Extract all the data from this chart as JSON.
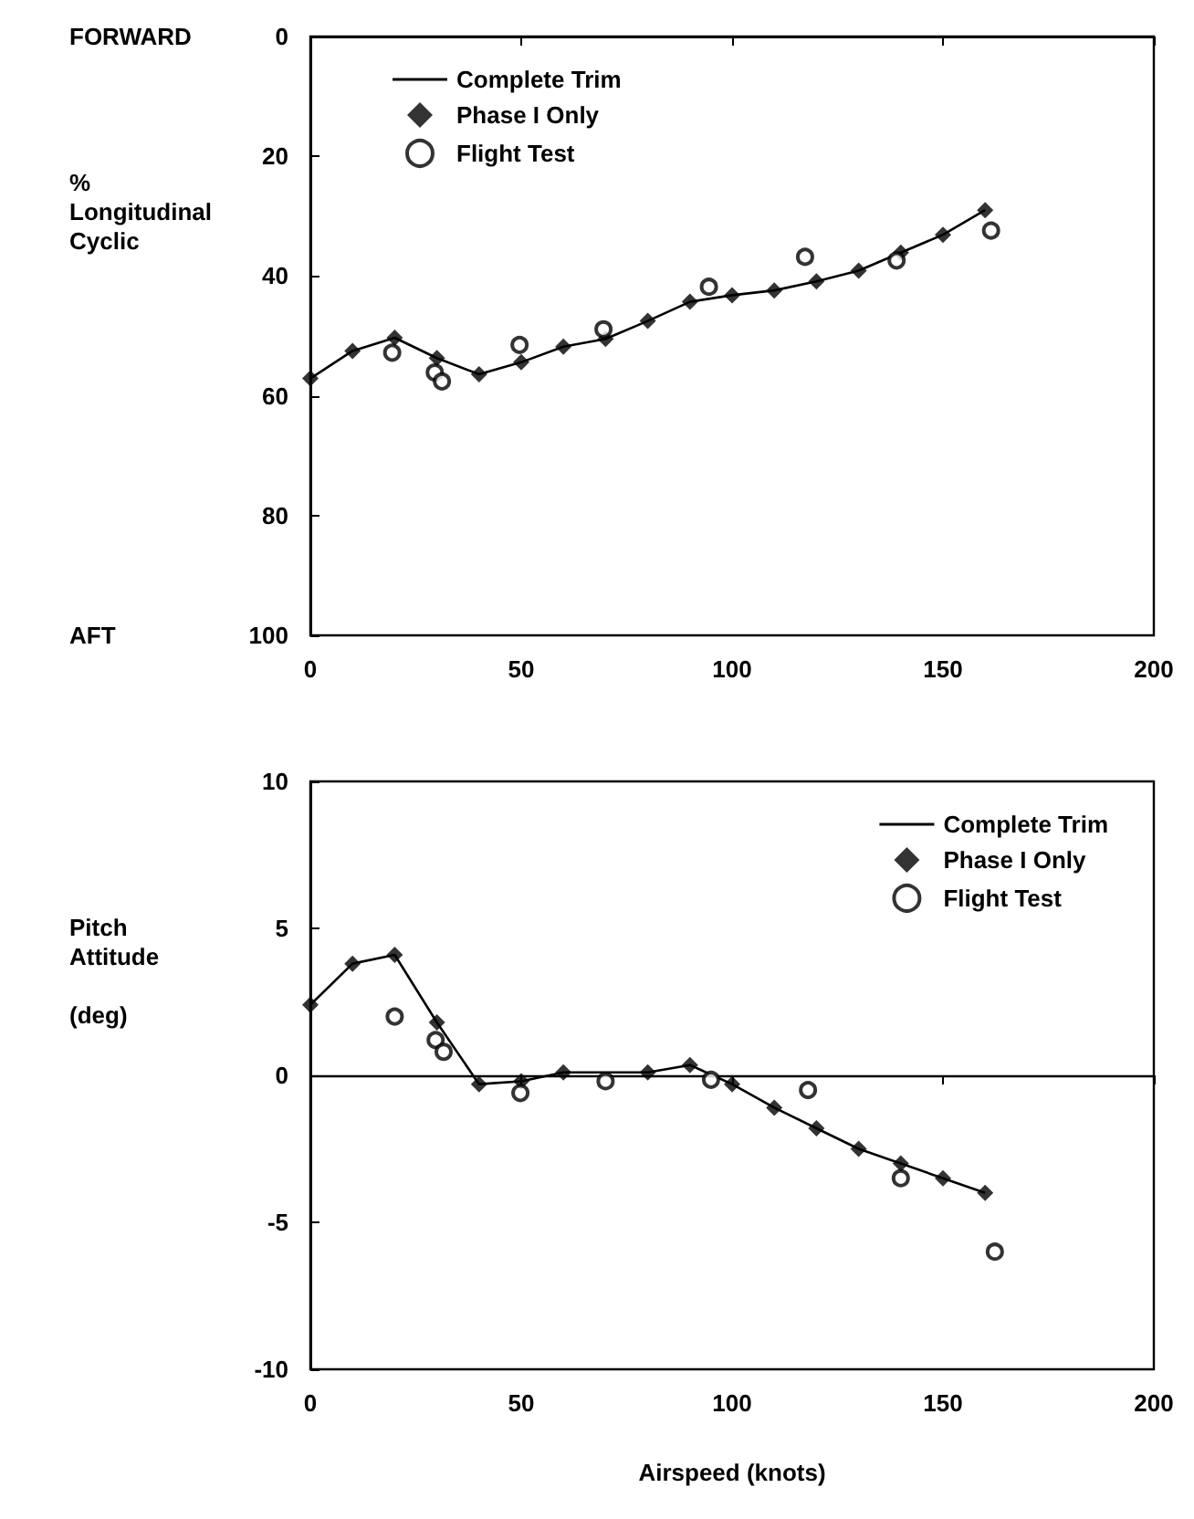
{
  "chart_data": [
    {
      "type": "line",
      "ylabel": "%\nLongitudinal\nCyclic",
      "annotations": [
        "FORWARD",
        "AFT"
      ],
      "xlim": [
        0,
        200
      ],
      "xticks": [
        0,
        50,
        100,
        150,
        200
      ],
      "ylim": [
        100,
        0
      ],
      "yticks": [
        0,
        20,
        40,
        60,
        80,
        100
      ],
      "grid": false,
      "legend": "top left",
      "series": [
        {
          "name": "Complete Trim",
          "color": "#000000",
          "marker": "none",
          "x": [
            0,
            10,
            20,
            30,
            40,
            50,
            60,
            70,
            80,
            90,
            100,
            110,
            120,
            130,
            140,
            150,
            160
          ],
          "values": [
            57.1,
            52.5,
            50.3,
            53.7,
            56.4,
            54.4,
            51.8,
            50.5,
            47.5,
            44.3,
            43.2,
            42.4,
            40.9,
            39.1,
            36.1,
            33.1,
            29.0
          ]
        },
        {
          "name": "Phase I Only",
          "type": "scatter",
          "color": "#000000",
          "marker": "diamond",
          "x": [
            0,
            10,
            20,
            30,
            40,
            50,
            60,
            70,
            80,
            90,
            100,
            110,
            120,
            130,
            140,
            150,
            160
          ],
          "values": [
            57.1,
            52.5,
            50.3,
            53.7,
            56.4,
            54.4,
            51.8,
            50.5,
            47.5,
            44.3,
            43.2,
            42.4,
            40.9,
            39.1,
            36.1,
            33.1,
            29.0
          ]
        },
        {
          "name": "Flight Test",
          "type": "scatter",
          "color": "#000000",
          "marker": "circle",
          "x": [
            19.4,
            29.5,
            31.2,
            49.6,
            69.5,
            94.5,
            117.3,
            139,
            161.4
          ],
          "values": [
            52.8,
            56.1,
            57.6,
            51.5,
            48.9,
            41.8,
            36.8,
            37.4,
            32.4
          ]
        }
      ]
    },
    {
      "type": "line",
      "ylabel": "Pitch\nAttitude\n\n(deg)",
      "xlabel": "Airspeed (knots)",
      "xlim": [
        0,
        200
      ],
      "xticks": [
        0,
        50,
        100,
        150,
        200
      ],
      "ylim": [
        -10,
        10
      ],
      "yticks": [
        -10,
        -5,
        0,
        5,
        10
      ],
      "grid": false,
      "legend": "top right",
      "ref_lines": [
        {
          "axis": "y",
          "value": 0,
          "color": "#000000"
        }
      ],
      "series": [
        {
          "name": "Complete Trim",
          "color": "#000000",
          "marker": "none",
          "x": [
            0,
            10,
            20,
            30,
            40,
            50,
            60,
            80,
            90,
            100,
            110,
            120,
            130,
            140,
            150,
            160
          ],
          "values": [
            2.4,
            3.8,
            4.1,
            1.8,
            -0.3,
            -0.2,
            0.1,
            0.1,
            0.35,
            -0.3,
            -1.1,
            -1.8,
            -2.5,
            -3.0,
            -3.5,
            -4.0
          ]
        },
        {
          "name": "Phase I Only",
          "type": "scatter",
          "color": "#000000",
          "marker": "diamond",
          "x": [
            0,
            10,
            20,
            30,
            40,
            50,
            60,
            80,
            90,
            100,
            110,
            120,
            130,
            140,
            150,
            160
          ],
          "values": [
            2.4,
            3.8,
            4.1,
            1.8,
            -0.3,
            -0.2,
            0.1,
            0.1,
            0.35,
            -0.3,
            -1.1,
            -1.8,
            -2.5,
            -3.0,
            -3.5,
            -4.0
          ]
        },
        {
          "name": "Flight Test",
          "type": "scatter",
          "color": "#000000",
          "marker": "circle",
          "x": [
            20,
            29.7,
            31.6,
            49.8,
            70,
            95,
            118,
            140,
            162.3
          ],
          "values": [
            2.0,
            1.2,
            0.8,
            -0.6,
            -0.2,
            -0.15,
            -0.5,
            -3.5,
            -6.0
          ]
        }
      ]
    }
  ]
}
